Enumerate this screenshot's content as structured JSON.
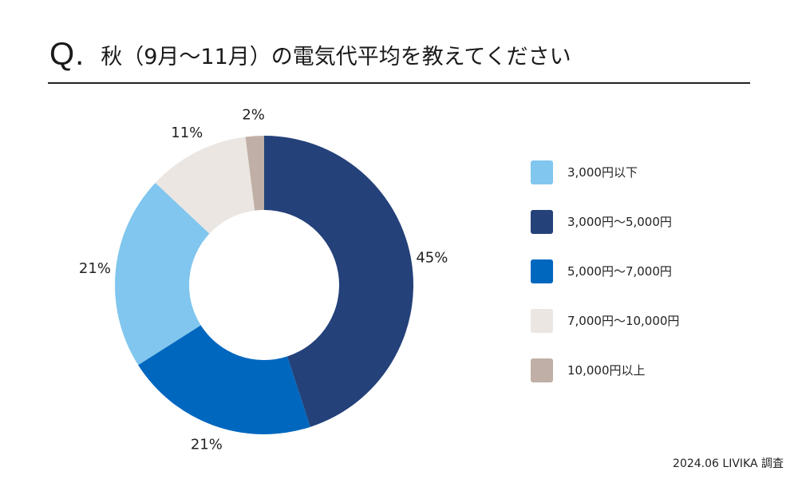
{
  "header": {
    "q_mark": "Q.",
    "question": "秋（9月〜11月）の電気代平均を教えてください"
  },
  "chart_data": {
    "type": "pie",
    "variant": "donut",
    "title": "",
    "start": "12 o'clock, clockwise",
    "legend_position": "right",
    "slices": [
      {
        "label": "3,000円〜5,000円",
        "value": 45,
        "value_label": "45%",
        "color": "#24417a"
      },
      {
        "label": "5,000円〜7,000円",
        "value": 21,
        "value_label": "21%",
        "color": "#0067bf"
      },
      {
        "label": "3,000円以下",
        "value": 21,
        "value_label": "21%",
        "color": "#80c6ee"
      },
      {
        "label": "7,000円〜10,000円",
        "value": 11,
        "value_label": "11%",
        "color": "#ebe6e2"
      },
      {
        "label": "10,000円以上",
        "value": 2,
        "value_label": "2%",
        "color": "#c0afa6"
      }
    ]
  },
  "legend": {
    "items": [
      {
        "label": "3,000円以下",
        "color": "#80c6ee"
      },
      {
        "label": "3,000円〜5,000円",
        "color": "#24417a"
      },
      {
        "label": "5,000円〜7,000円",
        "color": "#0067bf"
      },
      {
        "label": "7,000円〜10,000円",
        "color": "#ebe6e2"
      },
      {
        "label": "10,000円以上",
        "color": "#c0afa6"
      }
    ]
  },
  "footer": {
    "source": "2024.06 LIVIKA 調査"
  }
}
